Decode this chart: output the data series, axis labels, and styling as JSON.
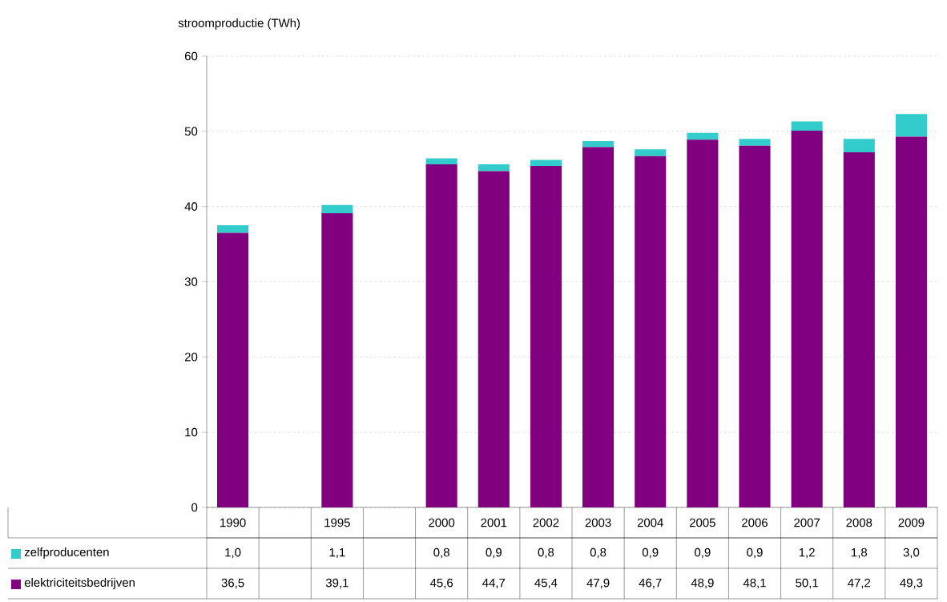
{
  "chart_data": {
    "type": "bar",
    "stacked": true,
    "ylabel": "stroomproductie (TWh)",
    "categories": [
      "1990",
      null,
      "1995",
      null,
      "2000",
      "2001",
      "2002",
      "2003",
      "2004",
      "2005",
      "2006",
      "2007",
      "2008",
      "2009"
    ],
    "series": [
      {
        "name": "elektriciteitsbedrijven",
        "color": "#800080",
        "values": [
          36.5,
          null,
          39.1,
          null,
          45.6,
          44.7,
          45.4,
          47.9,
          46.7,
          48.9,
          48.1,
          50.1,
          47.2,
          49.3
        ],
        "value_labels": [
          "36,5",
          null,
          "39,1",
          null,
          "45,6",
          "44,7",
          "45,4",
          "47,9",
          "46,7",
          "48,9",
          "48,1",
          "50,1",
          "47,2",
          "49,3"
        ]
      },
      {
        "name": "zelfproducenten",
        "color": "#33cccc",
        "values": [
          1.0,
          null,
          1.1,
          null,
          0.8,
          0.9,
          0.8,
          0.8,
          0.9,
          0.9,
          0.9,
          1.2,
          1.8,
          3.0
        ],
        "value_labels": [
          "1,0",
          null,
          "1,1",
          null,
          "0,8",
          "0,9",
          "0,8",
          "0,8",
          "0,9",
          "0,9",
          "0,9",
          "1,2",
          "1,8",
          "3,0"
        ]
      }
    ],
    "ylim": [
      0,
      60
    ],
    "yticks": [
      0,
      10,
      20,
      30,
      40,
      50,
      60
    ],
    "grid": "y",
    "legend": "bottom left"
  }
}
